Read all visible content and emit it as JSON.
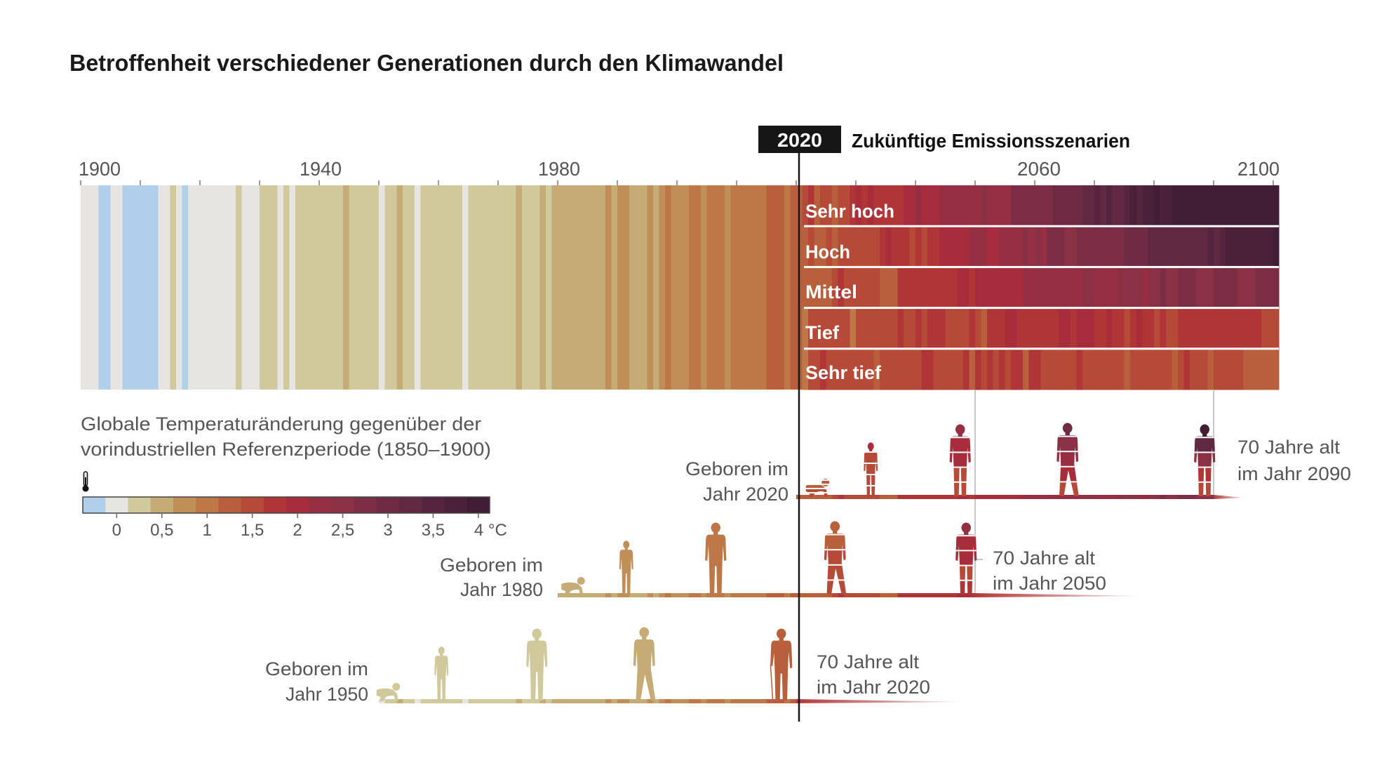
{
  "title": "Betroffenheit verschiedener Generationen durch den Klimawandel",
  "header": {
    "year_badge": "2020",
    "future_label": "Zukünftige Emissionsszenarien"
  },
  "chart_data": {
    "type": "heatmap",
    "title": "Betroffenheit verschiedener Generationen durch den Klimawandel",
    "x_axis": {
      "range": [
        1900,
        2100
      ],
      "tick_years": [
        1900,
        1940,
        1980,
        2060,
        2100
      ],
      "tick_labels": [
        "1900",
        "1940",
        "1980",
        "2060",
        "2100"
      ],
      "minor_tick_step": 10
    },
    "marker_year": 2020,
    "historical": {
      "start_year": 1900,
      "values": [
        0,
        0,
        0,
        -0.25,
        -0.25,
        0,
        0,
        -0.25,
        -0.25,
        -0.25,
        -0.25,
        -0.25,
        -0.25,
        0,
        0,
        0.25,
        0,
        -0.25,
        0,
        0,
        0,
        0,
        0,
        0,
        0,
        0,
        0.25,
        0,
        0,
        0,
        0.25,
        0.25,
        0.25,
        0,
        0.25,
        0,
        0.25,
        0.25,
        0.25,
        0.25,
        0.25,
        0.25,
        0.25,
        0.25,
        0.5,
        0.25,
        0.25,
        0.25,
        0.25,
        0.25,
        0,
        0.25,
        0.25,
        0.5,
        0.25,
        0.25,
        0,
        0.25,
        0.25,
        0.25,
        0.25,
        0.25,
        0.25,
        0.25,
        0,
        0.25,
        0.25,
        0.25,
        0.25,
        0.25,
        0.25,
        0.25,
        0.25,
        0.5,
        0.25,
        0.25,
        0.25,
        0.5,
        0.25,
        0.5,
        0.5,
        0.5,
        0.5,
        0.5,
        0.5,
        0.5,
        0.5,
        0.5,
        0.75,
        0.5,
        0.75,
        0.75,
        0.5,
        0.5,
        0.5,
        0.75,
        0.5,
        0.75,
        1,
        0.75,
        0.75,
        0.75,
        1,
        1,
        0.75,
        1,
        1,
        1,
        0.75,
        1,
        1,
        1,
        1,
        1,
        1,
        1.25,
        1.25,
        1.25,
        1,
        1.25,
        1.25
      ]
    },
    "scenarios": [
      {
        "name": "Sehr hoch",
        "start_year": 2021,
        "values": [
          1.5,
          1.75,
          1.25,
          1.5,
          1.5,
          1.25,
          1.5,
          1.5,
          1.75,
          2,
          1.75,
          2,
          1.75,
          1.75,
          1.75,
          1.75,
          1.75,
          2,
          2,
          2.25,
          2,
          2,
          2,
          2.25,
          2.25,
          2.25,
          2.25,
          2.25,
          2.25,
          2.25,
          2.5,
          2.25,
          2.25,
          2.25,
          2.25,
          2.75,
          2.75,
          2.75,
          2.75,
          2.75,
          2.75,
          2.75,
          3,
          3,
          3,
          3,
          3,
          3.25,
          3.25,
          3.5,
          3.25,
          3.5,
          3.25,
          3.25,
          3.5,
          3.75,
          3.5,
          3.75,
          3.75,
          4,
          3.75,
          3.75,
          4,
          4,
          4,
          4,
          4,
          4,
          4,
          4,
          4,
          4,
          4,
          4,
          4,
          4,
          4,
          4,
          4,
          4
        ]
      },
      {
        "name": "Hoch",
        "start_year": 2021,
        "values": [
          1.25,
          1.5,
          1.25,
          1.25,
          1.5,
          1.25,
          1.5,
          1.5,
          1.5,
          1.5,
          1.5,
          1.5,
          1.5,
          1.75,
          2,
          1.75,
          1.75,
          1.75,
          1.5,
          1.75,
          1.5,
          1.75,
          1.75,
          2,
          2,
          2,
          2,
          2,
          2.25,
          2.25,
          2.25,
          2,
          2,
          2.25,
          2.25,
          2.25,
          2.25,
          2.5,
          2.25,
          2.5,
          2.25,
          2.75,
          2.75,
          2.75,
          2.5,
          2.5,
          2.75,
          2.75,
          2.75,
          2.75,
          2.75,
          2.75,
          2.75,
          2.75,
          3,
          3,
          3,
          3,
          3.25,
          3.25,
          3.25,
          3.25,
          3.25,
          3.25,
          3.25,
          3.25,
          3.25,
          3.25,
          3.5,
          3.25,
          3.5,
          3.75,
          3.75,
          3.75,
          3.75,
          3.75,
          3.75,
          3.75,
          3.75,
          4
        ]
      },
      {
        "name": "Mittel",
        "start_year": 2021,
        "values": [
          1.25,
          1.25,
          1.25,
          1.25,
          1.25,
          1.5,
          1.75,
          1.5,
          1.5,
          1.5,
          1.5,
          1.5,
          1.5,
          1.25,
          1.25,
          1.25,
          1.75,
          1.75,
          1.75,
          1.75,
          1.75,
          1.75,
          1.75,
          1.75,
          1.75,
          1.75,
          2,
          2,
          1.75,
          2,
          2,
          2,
          2,
          2,
          2,
          2,
          2,
          2.25,
          2.25,
          2.25,
          2.25,
          2.25,
          2.25,
          2.25,
          2.25,
          2.25,
          2.25,
          2.5,
          2.5,
          2.25,
          2.25,
          2.25,
          2.25,
          2.5,
          2.5,
          2.5,
          2.5,
          2.25,
          2.5,
          2.5,
          2.75,
          2.5,
          2.5,
          2.75,
          2.75,
          2.75,
          2.5,
          2.5,
          2.5,
          2.75,
          2.75,
          2.75,
          2.75,
          2.5,
          2.5,
          2.5,
          2.75,
          2.75,
          2.75,
          2.75
        ]
      },
      {
        "name": "Tief",
        "start_year": 2021,
        "values": [
          1,
          1.5,
          1.5,
          1.5,
          1.5,
          1.5,
          1.5,
          1.5,
          1,
          1.5,
          1.5,
          1.5,
          1.5,
          1.5,
          1.5,
          1.5,
          1.75,
          1.5,
          1.5,
          1.75,
          1.5,
          1.75,
          1.75,
          1.75,
          1.5,
          1.5,
          1.5,
          1.5,
          1.75,
          1.5,
          1.25,
          1.75,
          1.75,
          1.75,
          2,
          2,
          1.75,
          1.75,
          1.75,
          1.75,
          1.75,
          1.75,
          1.75,
          2,
          2,
          1.75,
          2,
          2,
          2,
          1.75,
          1.75,
          2,
          1.75,
          1.75,
          1.5,
          1.75,
          2,
          1.75,
          1.75,
          1.5,
          1.75,
          1.5,
          1.5,
          1.75,
          1.75,
          1.75,
          1.75,
          1.75,
          1.75,
          1.75,
          1.75,
          1.75,
          1.75,
          1.75,
          1.75,
          1.75,
          1.75,
          1.5,
          1.5,
          1.5
        ]
      },
      {
        "name": "Sehr tief",
        "start_year": 2021,
        "values": [
          1,
          1.5,
          1.5,
          1.75,
          1.5,
          1.5,
          1.5,
          1.5,
          1.5,
          1.5,
          1.5,
          1.5,
          1.25,
          1.5,
          1.5,
          1.5,
          1.5,
          1.5,
          1.5,
          1.5,
          1.75,
          1.75,
          1.5,
          1.5,
          1.5,
          1.5,
          1.5,
          1.75,
          1.25,
          1.75,
          1.5,
          1.75,
          1.5,
          1.75,
          1.5,
          1.75,
          1.75,
          1.25,
          1.75,
          1.75,
          1.5,
          1.5,
          1.5,
          1.5,
          1.5,
          1.5,
          1.75,
          1.5,
          1.5,
          1.5,
          1.5,
          1.5,
          1.5,
          1.5,
          1.25,
          1.5,
          1.5,
          1.5,
          1.5,
          1.5,
          1.5,
          1.5,
          1.25,
          1.5,
          1.75,
          1.5,
          1.5,
          1.5,
          1.25,
          1.5,
          1.5,
          1.5,
          1.5,
          1.5,
          1.25,
          1.25,
          1.25,
          1.25,
          1.25,
          1.25
        ]
      }
    ],
    "legend": {
      "title_lines": [
        "Globale Temperaturänderung gegenüber der",
        "vorindustriellen Referenzperiode (1850–1900)"
      ],
      "icon": "thermometer-icon",
      "bin_start": -0.25,
      "bin_step": 0.25,
      "colors": [
        "#B0CFEB",
        "#E6E5E1",
        "#CFC99B",
        "#C5AC77",
        "#C08E57",
        "#BE7746",
        "#B8603C",
        "#B64A39",
        "#AF3537",
        "#A82D3A",
        "#962F41",
        "#8A3146",
        "#7B2E45",
        "#6E2C44",
        "#612841",
        "#55243E",
        "#4A2139",
        "#411E35"
      ],
      "tick_values": [
        0,
        0.5,
        1,
        1.5,
        2,
        2.5,
        3,
        3.5,
        4
      ],
      "tick_labels": [
        "0",
        "0,5",
        "1",
        "1,5",
        "2",
        "2,5",
        "3",
        "3,5",
        "4 °C"
      ]
    },
    "generations": [
      {
        "birth_year": 2020,
        "end_year": 2090,
        "born_label": [
          "Geboren im",
          "Jahr 2020"
        ],
        "age_label": [
          "70 Jahre alt",
          "im Jahr 2090"
        ],
        "figures": [
          {
            "kind": "baby",
            "year": 2023
          },
          {
            "kind": "child",
            "year": 2032
          },
          {
            "kind": "adult",
            "year": 2047
          },
          {
            "kind": "walker",
            "year": 2065
          },
          {
            "kind": "adult",
            "year": 2088
          }
        ]
      },
      {
        "birth_year": 1980,
        "end_year": 2050,
        "born_label": [
          "Geboren im",
          "Jahr 1980"
        ],
        "age_label": [
          "70 Jahre alt",
          "im Jahr 2050"
        ],
        "figures": [
          {
            "kind": "baby",
            "year": 1982
          },
          {
            "kind": "child",
            "year": 1991
          },
          {
            "kind": "adult",
            "year": 2006
          },
          {
            "kind": "walker",
            "year": 2026
          },
          {
            "kind": "adult",
            "year": 2048
          }
        ]
      },
      {
        "birth_year": 1950,
        "end_year": 2020,
        "born_label": [
          "Geboren im",
          "Jahr 1950"
        ],
        "age_label": [
          "70 Jahre alt",
          "im Jahr 2020"
        ],
        "figures": [
          {
            "kind": "baby",
            "year": 1951
          },
          {
            "kind": "child",
            "year": 1960
          },
          {
            "kind": "adult",
            "year": 1976
          },
          {
            "kind": "walker",
            "year": 1994
          },
          {
            "kind": "elder",
            "year": 2017
          }
        ]
      }
    ]
  }
}
